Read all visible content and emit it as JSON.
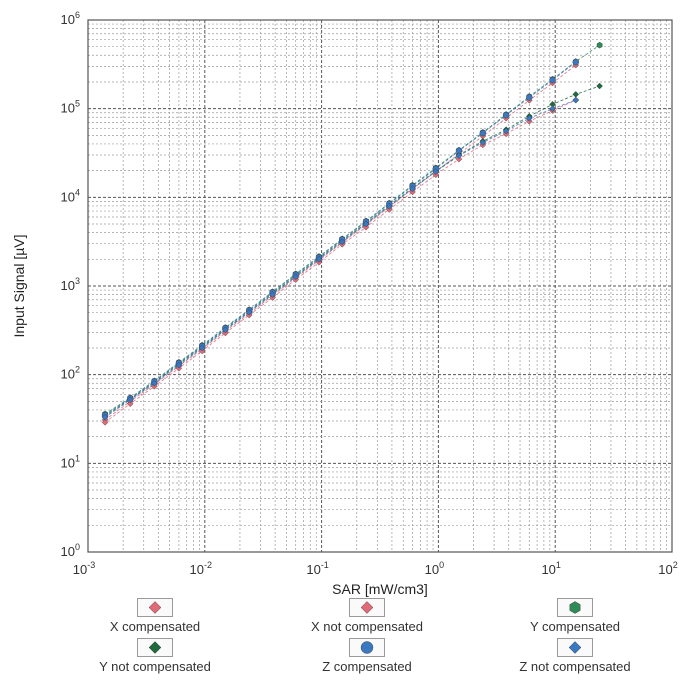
{
  "chart_data": {
    "type": "scatter",
    "title": "",
    "xlabel": "SAR [mW/cm3]",
    "ylabel": "Input Signal [µV]",
    "x_scale": "log",
    "y_scale": "log",
    "xlim": [
      0.001,
      100
    ],
    "ylim": [
      1,
      1000000
    ],
    "x_ticks": [
      {
        "base": "10",
        "exp": "-3"
      },
      {
        "base": "10",
        "exp": "-2"
      },
      {
        "base": "10",
        "exp": "-1"
      },
      {
        "base": "10",
        "exp": "0"
      },
      {
        "base": "10",
        "exp": "1"
      },
      {
        "base": "10",
        "exp": "2"
      }
    ],
    "y_ticks": [
      {
        "base": "10",
        "exp": "0"
      },
      {
        "base": "10",
        "exp": "1"
      },
      {
        "base": "10",
        "exp": "2"
      },
      {
        "base": "10",
        "exp": "3"
      },
      {
        "base": "10",
        "exp": "4"
      },
      {
        "base": "10",
        "exp": "5"
      },
      {
        "base": "10",
        "exp": "6"
      }
    ],
    "grid": true,
    "legend_position": "bottom",
    "series": [
      {
        "name": "X compensated",
        "color": "#e06a78",
        "marker": "diamond",
        "x": [
          0.0014,
          0.0023,
          0.0037,
          0.006,
          0.0095,
          0.015,
          0.024,
          0.038,
          0.06,
          0.095,
          0.15,
          0.24,
          0.38,
          0.6,
          0.95,
          1.5,
          2.4,
          3.8,
          6,
          9.5,
          15
        ],
        "y": [
          31,
          50,
          78,
          125,
          195,
          310,
          490,
          780,
          1240,
          1950,
          3100,
          4900,
          7800,
          12400,
          19500,
          31000,
          49000,
          78000,
          124000,
          195000,
          310000
        ]
      },
      {
        "name": "X not compensated",
        "color": "#e06a78",
        "marker": "diamond",
        "x": [
          0.0014,
          0.0023,
          0.0037,
          0.006,
          0.0095,
          0.015,
          0.024,
          0.038,
          0.06,
          0.095,
          0.15,
          0.24,
          0.38,
          0.6,
          0.95,
          1.5,
          2.4,
          3.8,
          6,
          9.5,
          15
        ],
        "y": [
          29,
          47,
          74,
          118,
          185,
          295,
          470,
          740,
          1180,
          1850,
          2950,
          4600,
          7300,
          11500,
          18000,
          27000,
          39000,
          52000,
          72000,
          95000,
          125000
        ]
      },
      {
        "name": "Y compensated",
        "color": "#2e8b57",
        "marker": "hexagon",
        "x": [
          0.0014,
          0.0023,
          0.0037,
          0.006,
          0.0095,
          0.015,
          0.024,
          0.038,
          0.06,
          0.095,
          0.15,
          0.24,
          0.38,
          0.6,
          0.95,
          1.5,
          2.4,
          3.8,
          6,
          9.5,
          15,
          24
        ],
        "y": [
          36,
          55,
          85,
          138,
          215,
          340,
          540,
          860,
          1370,
          2150,
          3400,
          5400,
          8600,
          13700,
          21500,
          34000,
          54000,
          86000,
          137000,
          215000,
          340000,
          520000
        ]
      },
      {
        "name": "Y not compensated",
        "color": "#1f6b3f",
        "marker": "diamond",
        "x": [
          0.0014,
          0.0023,
          0.0037,
          0.006,
          0.0095,
          0.015,
          0.024,
          0.038,
          0.06,
          0.095,
          0.15,
          0.24,
          0.38,
          0.6,
          0.95,
          1.5,
          2.4,
          3.8,
          6,
          9.5,
          15,
          24
        ],
        "y": [
          34,
          53,
          82,
          132,
          205,
          325,
          515,
          820,
          1300,
          2050,
          3250,
          5100,
          8100,
          12700,
          19800,
          30000,
          43000,
          58000,
          82000,
          112000,
          145000,
          180000
        ]
      },
      {
        "name": "Z compensated",
        "color": "#3a78c2",
        "marker": "circle",
        "x": [
          0.0014,
          0.0023,
          0.0037,
          0.006,
          0.0095,
          0.015,
          0.024,
          0.038,
          0.06,
          0.095,
          0.15,
          0.24,
          0.38,
          0.6,
          0.95,
          1.5,
          2.4,
          3.8,
          6,
          9.5,
          15
        ],
        "y": [
          35,
          54,
          84,
          135,
          210,
          335,
          530,
          845,
          1340,
          2100,
          3350,
          5300,
          8450,
          13400,
          21000,
          33500,
          53000,
          84500,
          134000,
          210000,
          335000
        ]
      },
      {
        "name": "Z not compensated",
        "color": "#3a78c2",
        "marker": "diamond",
        "x": [
          0.0014,
          0.0023,
          0.0037,
          0.006,
          0.0095,
          0.015,
          0.024,
          0.038,
          0.06,
          0.095,
          0.15,
          0.24,
          0.38,
          0.6,
          0.95,
          1.5,
          2.4,
          3.8,
          6,
          9.5,
          15
        ],
        "y": [
          33,
          52,
          80,
          128,
          200,
          320,
          505,
          800,
          1270,
          2000,
          3150,
          5000,
          7900,
          12500,
          19500,
          29500,
          41500,
          56000,
          78000,
          100000,
          125000
        ]
      }
    ]
  }
}
